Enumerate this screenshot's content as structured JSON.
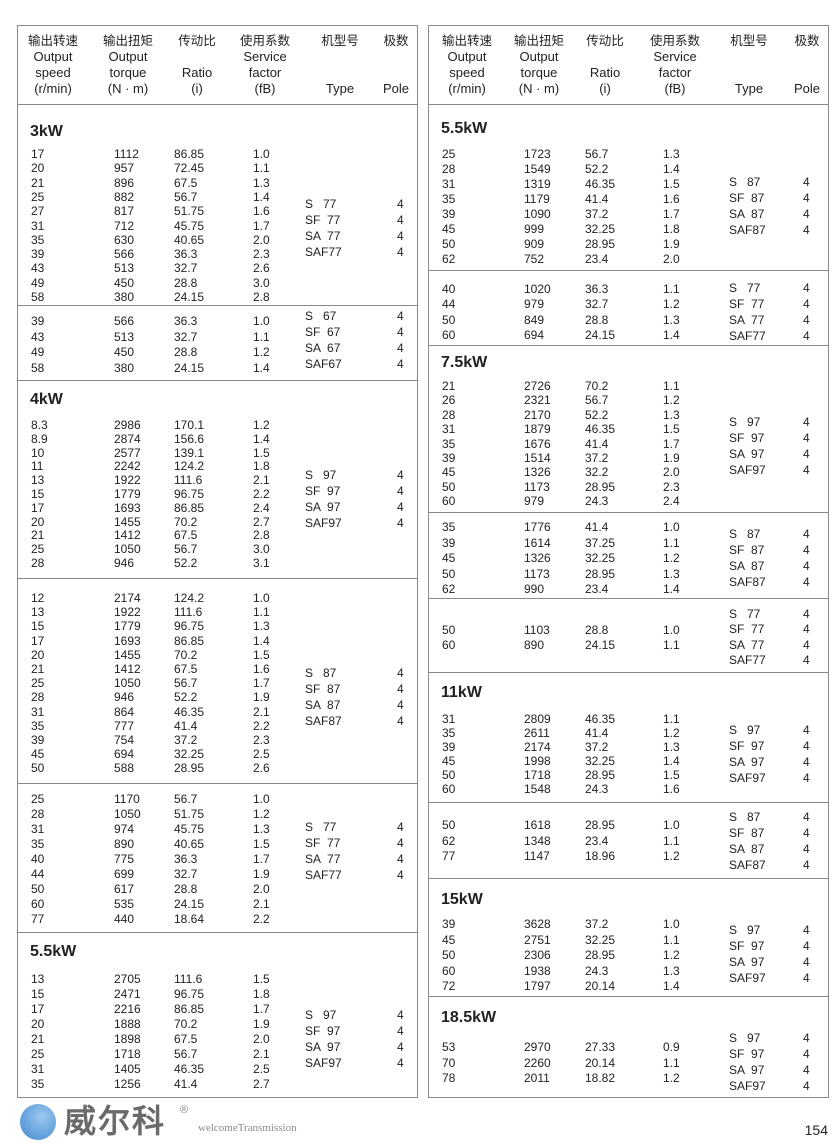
{
  "header": {
    "columns": [
      {
        "zh": "输出转速",
        "en": [
          "Output",
          "speed",
          "(r/min)"
        ]
      },
      {
        "zh": "输出扭矩",
        "en": [
          "Output",
          "torque",
          "(N · m)"
        ]
      },
      {
        "zh": "传动比",
        "en": [
          "",
          "Ratio",
          "(i)"
        ]
      },
      {
        "zh": "使用系数",
        "en": [
          "Service",
          "factor",
          "(fB)"
        ]
      },
      {
        "zh": "机型号",
        "en": [
          "",
          "",
          "Type"
        ]
      },
      {
        "zh": "极数",
        "en": [
          "",
          "",
          "Pole"
        ]
      }
    ]
  },
  "panels": [
    {
      "groups": [
        {
          "title": "3kW",
          "rows": [
            [
              "17",
              "1112",
              "86.85",
              "1.0"
            ],
            [
              "20",
              "957",
              "72.45",
              "1.1"
            ],
            [
              "21",
              "896",
              "67.5",
              "1.3"
            ],
            [
              "25",
              "882",
              "56.7",
              "1.4"
            ],
            [
              "27",
              "817",
              "51.75",
              "1.6"
            ],
            [
              "31",
              "712",
              "45.75",
              "1.7"
            ],
            [
              "35",
              "630",
              "40.65",
              "2.0"
            ],
            [
              "39",
              "566",
              "36.3",
              "2.3"
            ],
            [
              "43",
              "513",
              "32.7",
              "2.6"
            ],
            [
              "49",
              "450",
              "28.8",
              "3.0"
            ],
            [
              "58",
              "380",
              "24.15",
              "2.8"
            ]
          ],
          "types": [
            "S   77",
            "SF  77",
            "SA  77",
            "SAF77"
          ],
          "pole": "4"
        },
        {
          "title": "",
          "rows": [
            [
              "39",
              "566",
              "36.3",
              "1.0"
            ],
            [
              "43",
              "513",
              "32.7",
              "1.1"
            ],
            [
              "49",
              "450",
              "28.8",
              "1.2"
            ],
            [
              "58",
              "380",
              "24.15",
              "1.4"
            ]
          ],
          "types": [
            "S   67",
            "SF  67",
            "SA  67",
            "SAF67"
          ],
          "pole": "4"
        },
        {
          "title": "4kW",
          "rows": [
            [
              "8.3",
              "2986",
              "170.1",
              "1.2"
            ],
            [
              "8.9",
              "2874",
              "156.6",
              "1.4"
            ],
            [
              "10",
              "2577",
              "139.1",
              "1.5"
            ],
            [
              "11",
              "2242",
              "124.2",
              "1.8"
            ],
            [
              "13",
              "1922",
              "111.6",
              "2.1"
            ],
            [
              "15",
              "1779",
              "96.75",
              "2.2"
            ],
            [
              "17",
              "1693",
              "86.85",
              "2.4"
            ],
            [
              "20",
              "1455",
              "70.2",
              "2.7"
            ],
            [
              "21",
              "1412",
              "67.5",
              "2.8"
            ],
            [
              "25",
              "1050",
              "56.7",
              "3.0"
            ],
            [
              "28",
              "946",
              "52.2",
              "3.1"
            ]
          ],
          "types": [
            "S   97",
            "SF  97",
            "SA  97",
            "SAF97"
          ],
          "pole": "4"
        },
        {
          "title": "",
          "rows": [
            [
              "12",
              "2174",
              "124.2",
              "1.0"
            ],
            [
              "13",
              "1922",
              "111.6",
              "1.1"
            ],
            [
              "15",
              "1779",
              "96.75",
              "1.3"
            ],
            [
              "17",
              "1693",
              "86.85",
              "1.4"
            ],
            [
              "20",
              "1455",
              "70.2",
              "1.5"
            ],
            [
              "21",
              "1412",
              "67.5",
              "1.6"
            ],
            [
              "25",
              "1050",
              "56.7",
              "1.7"
            ],
            [
              "28",
              "946",
              "52.2",
              "1.9"
            ],
            [
              "31",
              "864",
              "46.35",
              "2.1"
            ],
            [
              "35",
              "777",
              "41.4",
              "2.2"
            ],
            [
              "39",
              "754",
              "37.2",
              "2.3"
            ],
            [
              "45",
              "694",
              "32.25",
              "2.5"
            ],
            [
              "50",
              "588",
              "28.95",
              "2.6"
            ]
          ],
          "types": [
            "S   87",
            "SF  87",
            "SA  87",
            "SAF87"
          ],
          "pole": "4"
        },
        {
          "title": "",
          "rows": [
            [
              "25",
              "1170",
              "56.7",
              "1.0"
            ],
            [
              "28",
              "1050",
              "51.75",
              "1.2"
            ],
            [
              "31",
              "974",
              "45.75",
              "1.3"
            ],
            [
              "35",
              "890",
              "40.65",
              "1.5"
            ],
            [
              "40",
              "775",
              "36.3",
              "1.7"
            ],
            [
              "44",
              "699",
              "32.7",
              "1.9"
            ],
            [
              "50",
              "617",
              "28.8",
              "2.0"
            ],
            [
              "60",
              "535",
              "24.15",
              "2.1"
            ],
            [
              "77",
              "440",
              "18.64",
              "2.2"
            ]
          ],
          "types": [
            "S   77",
            "SF  77",
            "SA  77",
            "SAF77"
          ],
          "pole": "4"
        },
        {
          "title": "5.5kW",
          "rows": [
            [
              "13",
              "2705",
              "111.6",
              "1.5"
            ],
            [
              "15",
              "2471",
              "96.75",
              "1.8"
            ],
            [
              "17",
              "2216",
              "86.85",
              "1.7"
            ],
            [
              "20",
              "1888",
              "70.2",
              "1.9"
            ],
            [
              "21",
              "1898",
              "67.5",
              "2.0"
            ],
            [
              "25",
              "1718",
              "56.7",
              "2.1"
            ],
            [
              "31",
              "1405",
              "46.35",
              "2.5"
            ],
            [
              "35",
              "1256",
              "41.4",
              "2.7"
            ]
          ],
          "types": [
            "S   97",
            "SF  97",
            "SA  97",
            "SAF97"
          ],
          "pole": "4"
        }
      ]
    },
    {
      "groups": [
        {
          "title": "5.5kW",
          "rows": [
            [
              "25",
              "1723",
              "56.7",
              "1.3"
            ],
            [
              "28",
              "1549",
              "52.2",
              "1.4"
            ],
            [
              "31",
              "1319",
              "46.35",
              "1.5"
            ],
            [
              "35",
              "1179",
              "41.4",
              "1.6"
            ],
            [
              "39",
              "1090",
              "37.2",
              "1.7"
            ],
            [
              "45",
              "999",
              "32.25",
              "1.8"
            ],
            [
              "50",
              "909",
              "28.95",
              "1.9"
            ],
            [
              "62",
              "752",
              "23.4",
              "2.0"
            ]
          ],
          "types": [
            "S   87",
            "SF  87",
            "SA  87",
            "SAF87"
          ],
          "pole": "4"
        },
        {
          "title": "",
          "rows": [
            [
              "40",
              "1020",
              "36.3",
              "1.1"
            ],
            [
              "44",
              "979",
              "32.7",
              "1.2"
            ],
            [
              "50",
              "849",
              "28.8",
              "1.3"
            ],
            [
              "60",
              "694",
              "24.15",
              "1.4"
            ]
          ],
          "types": [
            "S   77",
            "SF  77",
            "SA  77",
            "SAF77"
          ],
          "pole": "4"
        },
        {
          "title": "7.5kW",
          "rows": [
            [
              "21",
              "2726",
              "70.2",
              "1.1"
            ],
            [
              "26",
              "2321",
              "56.7",
              "1.2"
            ],
            [
              "28",
              "2170",
              "52.2",
              "1.3"
            ],
            [
              "31",
              "1879",
              "46.35",
              "1.5"
            ],
            [
              "35",
              "1676",
              "41.4",
              "1.7"
            ],
            [
              "39",
              "1514",
              "37.2",
              "1.9"
            ],
            [
              "45",
              "1326",
              "32.2",
              "2.0"
            ],
            [
              "50",
              "1173",
              "28.95",
              "2.3"
            ],
            [
              "60",
              "979",
              "24.3",
              "2.4"
            ]
          ],
          "types": [
            "S   97",
            "SF  97",
            "SA  97",
            "SAF97"
          ],
          "pole": "4"
        },
        {
          "title": "",
          "rows": [
            [
              "35",
              "1776",
              "41.4",
              "1.0"
            ],
            [
              "39",
              "1614",
              "37.25",
              "1.1"
            ],
            [
              "45",
              "1326",
              "32.25",
              "1.2"
            ],
            [
              "50",
              "1173",
              "28.95",
              "1.3"
            ],
            [
              "62",
              "990",
              "23.4",
              "1.4"
            ]
          ],
          "types": [
            "S   87",
            "SF  87",
            "SA  87",
            "SAF87"
          ],
          "pole": "4"
        },
        {
          "title": "",
          "rows": [
            [
              "50",
              "1103",
              "28.8",
              "1.0"
            ],
            [
              "60",
              "890",
              "24.15",
              "1.1"
            ]
          ],
          "types": [
            "S   77",
            "SF  77",
            "SA  77",
            "SAF77"
          ],
          "pole": "4"
        },
        {
          "title": "11kW",
          "rows": [
            [
              "31",
              "2809",
              "46.35",
              "1.1"
            ],
            [
              "35",
              "2611",
              "41.4",
              "1.2"
            ],
            [
              "39",
              "2174",
              "37.2",
              "1.3"
            ],
            [
              "45",
              "1998",
              "32.25",
              "1.4"
            ],
            [
              "50",
              "1718",
              "28.95",
              "1.5"
            ],
            [
              "60",
              "1548",
              "24.3",
              "1.6"
            ]
          ],
          "types": [
            "S   97",
            "SF  97",
            "SA  97",
            "SAF97"
          ],
          "pole": "4"
        },
        {
          "title": "",
          "rows": [
            [
              "50",
              "1618",
              "28.95",
              "1.0"
            ],
            [
              "62",
              "1348",
              "23.4",
              "1.1"
            ],
            [
              "77",
              "1147",
              "18.96",
              "1.2"
            ]
          ],
          "types": [
            "S   87",
            "SF  87",
            "SA  87",
            "SAF87"
          ],
          "pole": "4"
        },
        {
          "title": "15kW",
          "rows": [
            [
              "39",
              "3628",
              "37.2",
              "1.0"
            ],
            [
              "45",
              "2751",
              "32.25",
              "1.1"
            ],
            [
              "50",
              "2306",
              "28.95",
              "1.2"
            ],
            [
              "60",
              "1938",
              "24.3",
              "1.3"
            ],
            [
              "72",
              "1797",
              "20.14",
              "1.4"
            ]
          ],
          "types": [
            "S   97",
            "SF  97",
            "SA  97",
            "SAF97"
          ],
          "pole": "4"
        },
        {
          "title": "18.5kW",
          "rows": [
            [
              "53",
              "2970",
              "27.33",
              "0.9"
            ],
            [
              "70",
              "2260",
              "20.14",
              "1.1"
            ],
            [
              "78",
              "2011",
              "18.82",
              "1.2"
            ]
          ],
          "types": [
            "S   97",
            "SF  97",
            "SA  97",
            "SAF97"
          ],
          "pole": "4"
        }
      ]
    }
  ],
  "watermark": {
    "zh": "威尔科",
    "en": "welcomeTransmission",
    "reg": "®",
    "color": "#3f86d0"
  },
  "page_number": "154"
}
